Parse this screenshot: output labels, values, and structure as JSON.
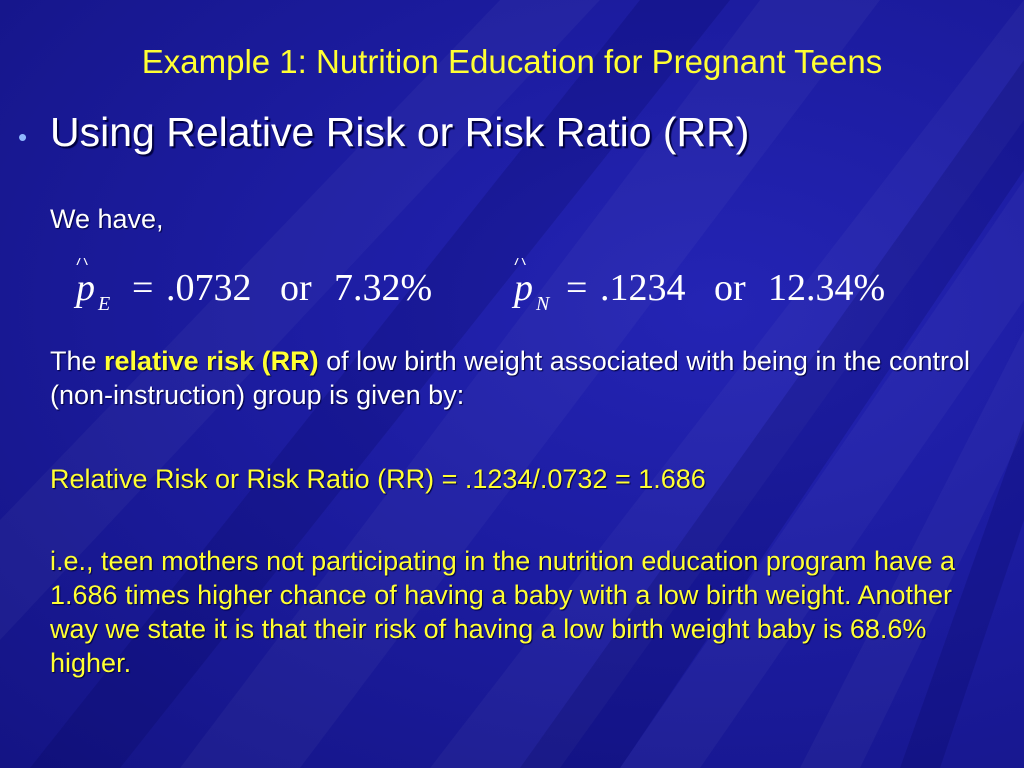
{
  "slide": {
    "title": "Example 1: Nutrition Education for Pregnant Teens",
    "bullet": {
      "glyph": "•",
      "text": "Using Relative Risk or Risk Ratio (RR)"
    },
    "we_have": "We have,",
    "formula": {
      "left": {
        "symbol": "p",
        "hat": "^",
        "subscript": "E",
        "equals": "=",
        "value": ".0732",
        "or": "or",
        "percent": "7.32%"
      },
      "right": {
        "symbol": "p",
        "hat": "^",
        "subscript": "N",
        "equals": "=",
        "value": ".1234",
        "or": "or",
        "percent": "12.34%"
      }
    },
    "rr_paragraph": {
      "prefix": "The ",
      "highlight": "relative risk (RR)",
      "suffix": " of low birth weight associated with being in the control (non-instruction) group is given by:"
    },
    "rr_equation": "Relative Risk or Risk Ratio (RR) = .1234/.0732 = 1.686",
    "interpretation": "i.e., teen mothers not participating in the nutrition education program have a 1.686 times higher chance of having a baby with a low birth weight.  Another way we state it is that their risk of having a low birth weight baby is 68.6% higher."
  },
  "colors": {
    "background": "#1d1d9c",
    "title": "#ffff33",
    "body_text": "#ffffff",
    "highlight": "#ffff33",
    "bullet": "#8fb8ff"
  }
}
